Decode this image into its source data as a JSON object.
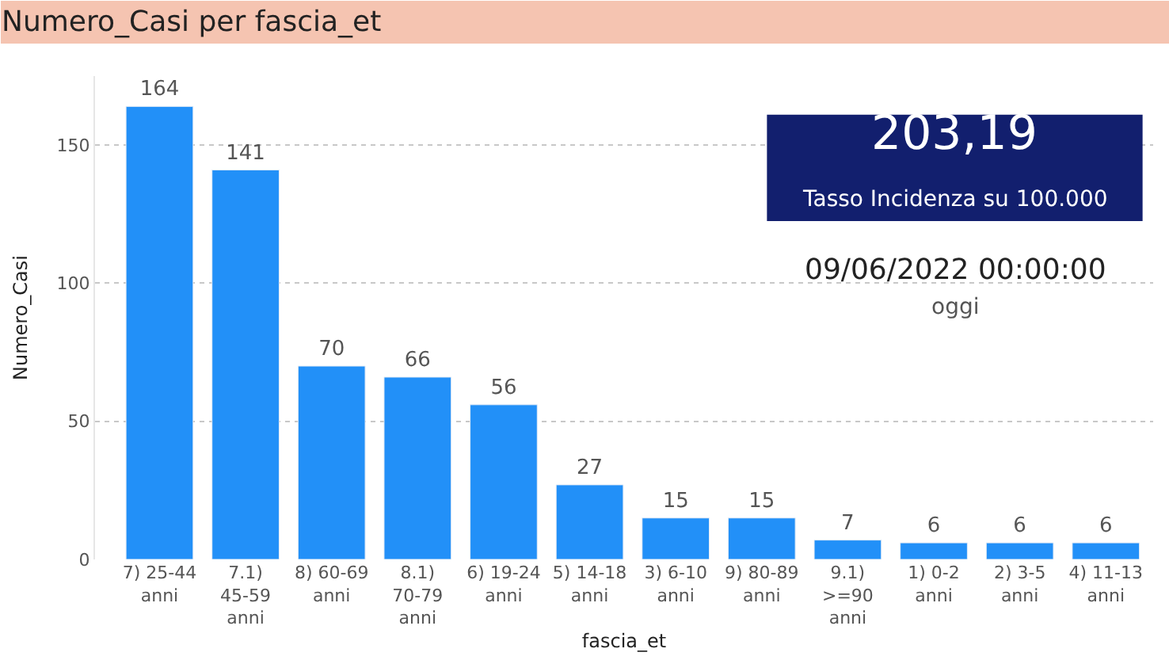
{
  "chart_data": {
    "type": "bar",
    "title": "Numero_Casi per fascia_et",
    "xlabel": "fascia_et",
    "ylabel": "Numero_Casi",
    "categories": [
      "7) 25-44 anni",
      "7.1) 45-59 anni",
      "8) 60-69 anni",
      "8.1) 70-79 anni",
      "6) 19-24 anni",
      "5) 14-18 anni",
      "3) 6-10 anni",
      "9) 80-89 anni",
      "9.1) >=90 anni",
      "1) 0-2 anni",
      "2) 3-5 anni",
      "4) 11-13 anni"
    ],
    "values": [
      164,
      141,
      70,
      66,
      56,
      27,
      15,
      15,
      7,
      6,
      6,
      6
    ],
    "color": "#2290f8",
    "ylim": [
      0,
      175
    ],
    "yticks": [
      0,
      50,
      100,
      150
    ],
    "grid": "y",
    "data_labels": true,
    "legend": false,
    "annotations": [
      "203,19",
      "Tasso Incidenza su 100.000",
      "09/06/2022 00:00:00",
      "oggi"
    ]
  }
}
